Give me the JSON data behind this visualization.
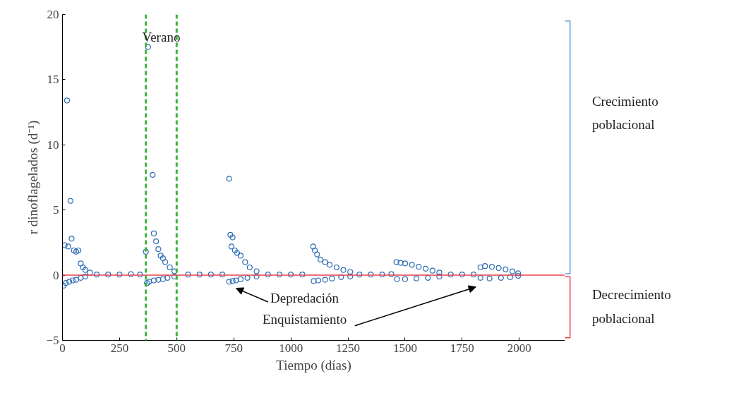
{
  "chart_data": {
    "type": "scatter",
    "xlabel": "Tiempo (días)",
    "ylabel": "r dinoflagelados (d⁻¹)",
    "xlim": [
      0,
      2200
    ],
    "xticks": [
      0,
      250,
      500,
      750,
      1000,
      1250,
      1500,
      1750,
      2000
    ],
    "ylim": [
      -5,
      20
    ],
    "yticks": [
      -5,
      0,
      5,
      10,
      15,
      20
    ],
    "grid": false,
    "marker": "circle",
    "series": [
      {
        "color": "#2e6db4",
        "x": [
          20,
          35,
          40,
          10,
          25,
          50,
          60,
          70,
          80,
          90,
          100,
          120,
          5,
          15,
          30,
          45,
          60,
          80,
          100,
          150,
          200,
          250,
          300,
          340,
          365,
          370,
          375,
          395,
          400,
          410,
          420,
          430,
          440,
          450,
          470,
          490,
          380,
          400,
          420,
          440,
          460,
          490,
          550,
          600,
          650,
          700,
          730,
          735,
          745,
          740,
          755,
          765,
          780,
          800,
          820,
          850,
          730,
          745,
          760,
          780,
          810,
          850,
          900,
          950,
          1000,
          1050,
          1098,
          1105,
          1115,
          1130,
          1150,
          1170,
          1200,
          1230,
          1260,
          1100,
          1120,
          1150,
          1180,
          1220,
          1260,
          1300,
          1350,
          1400,
          1440,
          1462,
          1480,
          1500,
          1530,
          1560,
          1590,
          1620,
          1650,
          1465,
          1500,
          1550,
          1600,
          1650,
          1700,
          1750,
          1800,
          1830,
          1850,
          1880,
          1910,
          1940,
          1970,
          1995,
          1830,
          1870,
          1920,
          1960,
          1995
        ],
        "values": [
          13.4,
          5.7,
          2.8,
          2.3,
          2.2,
          1.9,
          1.8,
          1.9,
          0.9,
          0.6,
          0.4,
          0.2,
          -0.8,
          -0.6,
          -0.5,
          -0.4,
          -0.35,
          -0.2,
          -0.1,
          0.05,
          0.05,
          0.05,
          0.08,
          0.05,
          1.8,
          -0.6,
          17.5,
          7.7,
          3.2,
          2.6,
          2.0,
          1.5,
          1.3,
          1.0,
          0.6,
          0.3,
          -0.5,
          -0.4,
          -0.35,
          -0.3,
          -0.2,
          -0.1,
          0.05,
          0.05,
          0.05,
          0.05,
          7.4,
          3.1,
          2.9,
          2.2,
          1.9,
          1.7,
          1.5,
          1.0,
          0.6,
          0.3,
          -0.5,
          -0.45,
          -0.4,
          -0.3,
          -0.2,
          -0.1,
          0.05,
          0.05,
          0.05,
          0.05,
          2.2,
          1.9,
          1.6,
          1.2,
          1.0,
          0.8,
          0.6,
          0.4,
          0.25,
          -0.45,
          -0.4,
          -0.35,
          -0.25,
          -0.15,
          -0.1,
          0.05,
          0.05,
          0.05,
          0.08,
          1.0,
          0.95,
          0.9,
          0.8,
          0.65,
          0.5,
          0.35,
          0.2,
          -0.3,
          -0.3,
          -0.25,
          -0.2,
          -0.1,
          0.05,
          0.05,
          0.05,
          0.6,
          0.7,
          0.65,
          0.55,
          0.45,
          0.3,
          0.15,
          -0.2,
          -0.25,
          -0.2,
          -0.15,
          -0.05
        ]
      }
    ],
    "ref_lines": [
      {
        "axis": "y",
        "value": 0,
        "color": "#e8414a",
        "line_style": "solid"
      },
      {
        "axis": "x",
        "value": 365,
        "color": "#3cb43c",
        "line_style": "dashed"
      },
      {
        "axis": "x",
        "value": 500,
        "color": "#3cb43c",
        "line_style": "dashed"
      }
    ],
    "annotations": [
      "Verano",
      "Depredación",
      "Enquistamiento",
      "Crecimiento\npoblacional",
      "Decrecimiento\npoblacional"
    ]
  }
}
